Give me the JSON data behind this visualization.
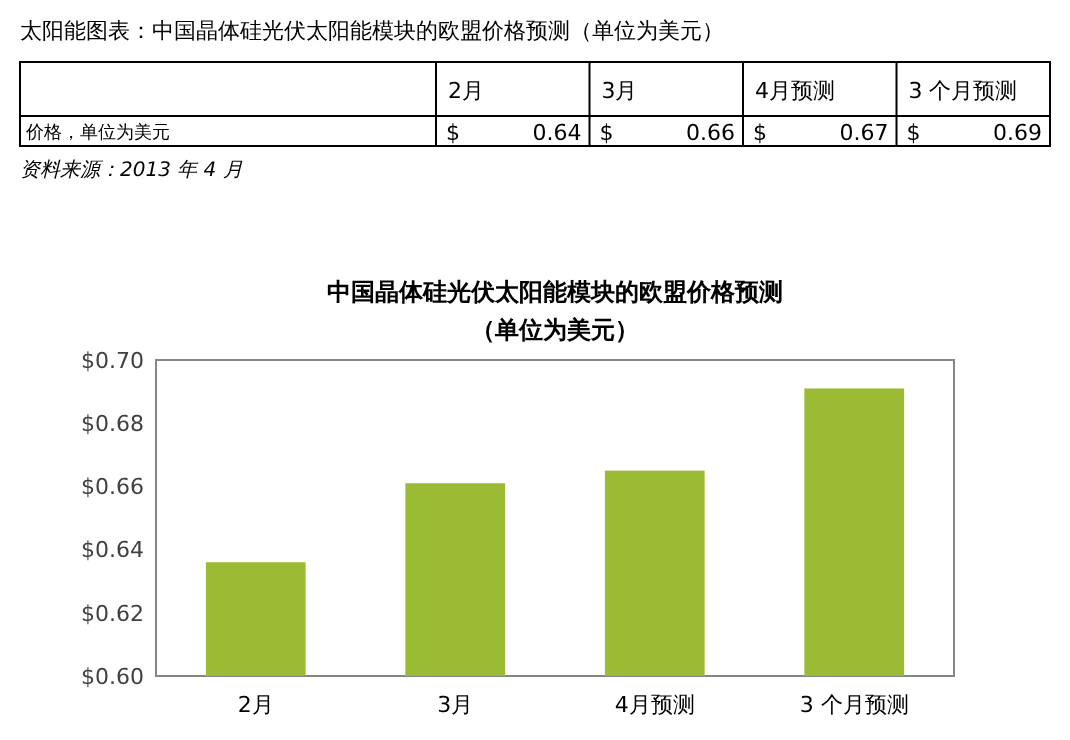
{
  "chart_data": {
    "type": "bar",
    "title": "中国晶体硅光伏太阳能模块的欧盟价格预测",
    "subtitle": "（单位为美元）",
    "categories": [
      "2月",
      "3月",
      "4月预测",
      "3 个月预测"
    ],
    "values": [
      0.636,
      0.661,
      0.665,
      0.691
    ],
    "value_labels": [
      "$ 0.64",
      "$ 0.66",
      "$ 0.67",
      "$ 0.69"
    ],
    "color": "#9bbb35",
    "ylim": [
      0.6,
      0.7
    ],
    "yticks": [
      {
        "value": 0.6,
        "label": "$0.60"
      },
      {
        "value": 0.62,
        "label": "$0.62"
      },
      {
        "value": 0.64,
        "label": "$0.64"
      },
      {
        "value": 0.66,
        "label": "$0.66"
      },
      {
        "value": 0.68,
        "label": "$0.68"
      },
      {
        "value": 0.7,
        "label": "$0.70"
      }
    ],
    "grid": false,
    "annotations": [
      "太阳能图表：中国晶体硅光伏太阳能模块的欧盟价格预测（单位为美元）",
      "价格，单位为美元",
      "资料来源：2013 年 4 月"
    ]
  }
}
